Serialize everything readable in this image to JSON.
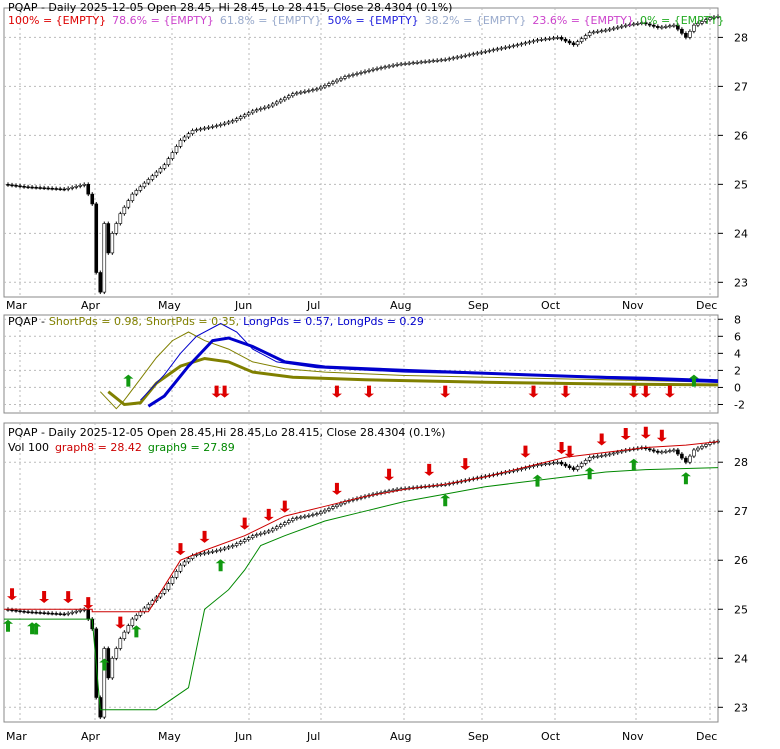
{
  "chart_data": [
    {
      "type": "candlestick",
      "title": "PQAP - Daily 2025-12-05 Open 28.45, Hi 28.45, Lo 28.415, Close 28.4304 (0.1%)",
      "fib_levels": [
        {
          "label": "100% = {EMPTY}",
          "color": "#dd0000"
        },
        {
          "label": "78.6% = {EMPTY}",
          "color": "#cc44cc"
        },
        {
          "label": "61.8% = {EMPTY}",
          "color": "#99aacc"
        },
        {
          "label": "50% = {EMPTY}",
          "color": "#2222dd"
        },
        {
          "label": "38.2% = {EMPTY}",
          "color": "#99aacc"
        },
        {
          "label": "23.6% = {EMPTY}",
          "color": "#cc44cc"
        },
        {
          "label": "0% = {EMPTY}",
          "color": "#22aa22"
        }
      ],
      "yticks": [
        23,
        24,
        25,
        26,
        27,
        28
      ],
      "ylim": [
        22.7,
        28.6
      ],
      "xticks": [
        "Mar",
        "Apr",
        "May",
        "Jun",
        "Jul",
        "Aug",
        "Sep",
        "Oct",
        "Nov",
        "Dec"
      ],
      "close_anchors": [
        [
          0,
          25.0
        ],
        [
          5,
          24.95
        ],
        [
          15,
          24.9
        ],
        [
          20,
          25.0
        ],
        [
          22,
          24.6
        ],
        [
          23,
          23.2
        ],
        [
          24,
          22.8
        ],
        [
          25,
          24.2
        ],
        [
          26,
          23.6
        ],
        [
          27,
          24.0
        ],
        [
          29,
          24.4
        ],
        [
          32,
          24.8
        ],
        [
          36,
          25.1
        ],
        [
          40,
          25.4
        ],
        [
          44,
          25.9
        ],
        [
          47,
          26.1
        ],
        [
          53,
          26.2
        ],
        [
          57,
          26.3
        ],
        [
          62,
          26.5
        ],
        [
          66,
          26.6
        ],
        [
          72,
          26.85
        ],
        [
          78,
          26.95
        ],
        [
          85,
          27.2
        ],
        [
          92,
          27.35
        ],
        [
          98,
          27.45
        ],
        [
          104,
          27.5
        ],
        [
          110,
          27.55
        ],
        [
          116,
          27.65
        ],
        [
          122,
          27.75
        ],
        [
          128,
          27.85
        ],
        [
          133,
          27.95
        ],
        [
          138,
          28.0
        ],
        [
          142,
          27.85
        ],
        [
          146,
          28.1
        ],
        [
          150,
          28.15
        ],
        [
          155,
          28.25
        ],
        [
          159,
          28.3
        ],
        [
          163,
          28.2
        ],
        [
          167,
          28.25
        ],
        [
          170,
          28.0
        ],
        [
          172,
          28.25
        ],
        [
          176,
          28.4
        ],
        [
          178,
          28.43
        ]
      ]
    },
    {
      "type": "line",
      "title": "PQAP - ShortPds = 0.98, ShortPds = 0.35, LongPds = 0.57, LongPds = 0.29",
      "legend": [
        {
          "label": "PQAP - ",
          "color": "#000000"
        },
        {
          "label": "ShortPds = 0.98, ",
          "color": "#808000"
        },
        {
          "label": "ShortPds = 0.35, ",
          "color": "#808000"
        },
        {
          "label": "LongPds = 0.57, ",
          "color": "#0000cc"
        },
        {
          "label": "LongPds = 0.29",
          "color": "#0000cc"
        }
      ],
      "yticks": [
        -2,
        0,
        2,
        4,
        6,
        8
      ],
      "ylim": [
        -3,
        8.5
      ],
      "series": [
        {
          "color": "#808000",
          "width": 1,
          "values": [
            [
              24,
              -0.5
            ],
            [
              28,
              -2.5
            ],
            [
              30,
              -1.5
            ],
            [
              34,
              1.0
            ],
            [
              38,
              3.5
            ],
            [
              42,
              5.5
            ],
            [
              46,
              6.5
            ],
            [
              50,
              5.5
            ],
            [
              56,
              4.5
            ],
            [
              62,
              3.0
            ],
            [
              70,
              2.2
            ],
            [
              80,
              1.8
            ],
            [
              100,
              1.4
            ],
            [
              130,
              1.1
            ],
            [
              160,
              0.8
            ],
            [
              178,
              0.6
            ]
          ]
        },
        {
          "color": "#808000",
          "width": 3,
          "values": [
            [
              26,
              -0.5
            ],
            [
              30,
              -2.0
            ],
            [
              34,
              -1.8
            ],
            [
              38,
              0.5
            ],
            [
              44,
              2.5
            ],
            [
              50,
              3.4
            ],
            [
              56,
              3.0
            ],
            [
              62,
              1.8
            ],
            [
              72,
              1.2
            ],
            [
              90,
              0.9
            ],
            [
              120,
              0.6
            ],
            [
              150,
              0.4
            ],
            [
              178,
              0.3
            ]
          ]
        },
        {
          "color": "#0000cc",
          "width": 1,
          "values": [
            [
              34,
              -1.5
            ],
            [
              40,
              1.5
            ],
            [
              44,
              4.0
            ],
            [
              48,
              6.0
            ],
            [
              54,
              7.5
            ],
            [
              58,
              6.5
            ],
            [
              62,
              4.5
            ],
            [
              68,
              3.0
            ],
            [
              78,
              2.3
            ],
            [
              100,
              1.8
            ],
            [
              130,
              1.5
            ],
            [
              160,
              1.2
            ],
            [
              178,
              0.9
            ]
          ]
        },
        {
          "color": "#0000cc",
          "width": 3,
          "values": [
            [
              36,
              -2.2
            ],
            [
              40,
              -1.0
            ],
            [
              46,
              2.5
            ],
            [
              52,
              5.5
            ],
            [
              56,
              5.8
            ],
            [
              62,
              4.8
            ],
            [
              70,
              3.0
            ],
            [
              80,
              2.4
            ],
            [
              100,
              2.0
            ],
            [
              130,
              1.5
            ],
            [
              160,
              1.0
            ],
            [
              178,
              0.7
            ]
          ]
        }
      ],
      "up_arrows": [
        31,
        172
      ],
      "down_arrows": [
        53,
        55,
        83,
        91,
        110,
        132,
        140,
        157,
        160,
        166
      ]
    },
    {
      "type": "candlestick",
      "title": "PQAP - Daily 2025-12-05 Open 28.45,Hi 28.45,Lo 28.415, Close 28.4304 (0.1%)",
      "subtitle": "Vol 100",
      "legend": [
        {
          "label": "graph8 = 28.42",
          "color": "#cc0000"
        },
        {
          "label": "graph9 = 27.89",
          "color": "#008800"
        }
      ],
      "yticks": [
        23,
        24,
        25,
        26,
        27,
        28
      ],
      "ylim": [
        22.7,
        28.8
      ],
      "xticks": [
        "Mar",
        "Apr",
        "May",
        "Jun",
        "Jul",
        "Aug",
        "Sep",
        "Oct",
        "Nov",
        "Dec"
      ],
      "graph8": [
        [
          0,
          25.0
        ],
        [
          22,
          25.0
        ],
        [
          22,
          24.95
        ],
        [
          36,
          24.95
        ],
        [
          44,
          26.0
        ],
        [
          50,
          26.2
        ],
        [
          60,
          26.5
        ],
        [
          70,
          26.9
        ],
        [
          80,
          27.1
        ],
        [
          90,
          27.3
        ],
        [
          100,
          27.45
        ],
        [
          110,
          27.55
        ],
        [
          120,
          27.7
        ],
        [
          130,
          27.9
        ],
        [
          140,
          28.1
        ],
        [
          150,
          28.2
        ],
        [
          160,
          28.3
        ],
        [
          170,
          28.35
        ],
        [
          178,
          28.42
        ]
      ],
      "graph9": [
        [
          0,
          24.8
        ],
        [
          22,
          24.8
        ],
        [
          24,
          22.95
        ],
        [
          38,
          22.95
        ],
        [
          46,
          23.4
        ],
        [
          50,
          25.0
        ],
        [
          56,
          25.4
        ],
        [
          60,
          25.8
        ],
        [
          64,
          26.3
        ],
        [
          70,
          26.5
        ],
        [
          80,
          26.8
        ],
        [
          90,
          27.0
        ],
        [
          100,
          27.2
        ],
        [
          110,
          27.35
        ],
        [
          120,
          27.5
        ],
        [
          130,
          27.6
        ],
        [
          140,
          27.7
        ],
        [
          150,
          27.8
        ],
        [
          160,
          27.85
        ],
        [
          178,
          27.89
        ]
      ],
      "up_arrows": [
        1,
        7,
        8,
        25,
        33,
        54,
        110,
        133,
        146,
        157,
        170
      ],
      "down_arrows": [
        2,
        10,
        16,
        21,
        29,
        44,
        50,
        60,
        66,
        70,
        83,
        96,
        106,
        115,
        130,
        139,
        141,
        149,
        155,
        160,
        164
      ]
    }
  ]
}
